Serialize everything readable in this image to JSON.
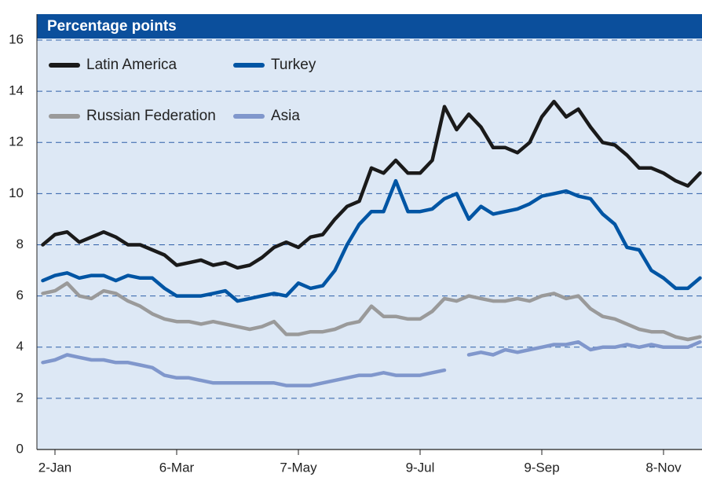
{
  "chart_data": {
    "type": "line",
    "title": "Percentage points",
    "categories": [
      null,
      "2-Jan",
      null,
      null,
      null,
      null,
      null,
      null,
      null,
      null,
      null,
      "6-Mar",
      null,
      null,
      null,
      null,
      null,
      null,
      null,
      null,
      null,
      "7-May",
      null,
      null,
      null,
      null,
      null,
      null,
      null,
      null,
      null,
      "9-Jul",
      null,
      null,
      null,
      null,
      null,
      null,
      null,
      null,
      null,
      "9-Sep",
      null,
      null,
      null,
      null,
      null,
      null,
      null,
      null,
      null,
      "8-Nov",
      null,
      null,
      null
    ],
    "ylim": [
      0,
      16
    ],
    "yticks": [
      0,
      2,
      4,
      6,
      8,
      10,
      12,
      14,
      16
    ],
    "grid": true,
    "legend": "top-left",
    "series": [
      {
        "name": "Latin America",
        "color": "#1a1a1a",
        "values": [
          8.0,
          8.4,
          8.5,
          8.1,
          8.3,
          8.5,
          8.3,
          8.0,
          8.0,
          7.8,
          7.6,
          7.2,
          7.3,
          7.4,
          7.2,
          7.3,
          7.1,
          7.2,
          7.5,
          7.9,
          8.1,
          7.9,
          8.3,
          8.4,
          9.0,
          9.5,
          9.7,
          11.0,
          10.8,
          11.3,
          10.8,
          10.8,
          11.3,
          13.4,
          12.5,
          13.1,
          12.6,
          11.8,
          11.8,
          11.6,
          12.0,
          13.0,
          13.6,
          13.0,
          13.3,
          12.6,
          12.0,
          11.9,
          11.5,
          11.0,
          11.0,
          10.8,
          10.5,
          10.3,
          10.8
        ]
      },
      {
        "name": "Turkey",
        "color": "#0055a4",
        "values": [
          6.6,
          6.8,
          6.9,
          6.7,
          6.8,
          6.8,
          6.6,
          6.8,
          6.7,
          6.7,
          6.3,
          6.0,
          6.0,
          6.0,
          6.1,
          6.2,
          5.8,
          5.9,
          6.0,
          6.1,
          6.0,
          6.5,
          6.3,
          6.4,
          7.0,
          8.0,
          8.8,
          9.3,
          9.3,
          10.5,
          9.3,
          9.3,
          9.4,
          9.8,
          10.0,
          9.0,
          9.5,
          9.2,
          9.3,
          9.4,
          9.6,
          9.9,
          10.0,
          10.1,
          9.9,
          9.8,
          9.2,
          8.8,
          7.9,
          7.8,
          7.0,
          6.7,
          6.3,
          6.3,
          6.7
        ]
      },
      {
        "name": "Russian Federation",
        "color": "#9a9a9a",
        "values": [
          6.1,
          6.2,
          6.5,
          6.0,
          5.9,
          6.2,
          6.1,
          5.8,
          5.6,
          5.3,
          5.1,
          5.0,
          5.0,
          4.9,
          5.0,
          4.9,
          4.8,
          4.7,
          4.8,
          5.0,
          4.5,
          4.5,
          4.6,
          4.6,
          4.7,
          4.9,
          5.0,
          5.6,
          5.2,
          5.2,
          5.1,
          5.1,
          5.4,
          5.9,
          5.8,
          6.0,
          5.9,
          5.8,
          5.8,
          5.9,
          5.8,
          6.0,
          6.1,
          5.9,
          6.0,
          5.5,
          5.2,
          5.1,
          4.9,
          4.7,
          4.6,
          4.6,
          4.4,
          4.3,
          4.4
        ]
      },
      {
        "name": "Asia",
        "color": "#8097cc",
        "values": [
          3.4,
          3.5,
          3.7,
          3.6,
          3.5,
          3.5,
          3.4,
          3.4,
          3.3,
          3.2,
          2.9,
          2.8,
          2.8,
          2.7,
          2.6,
          2.6,
          2.6,
          2.6,
          2.6,
          2.6,
          2.5,
          2.5,
          2.5,
          2.6,
          2.7,
          2.8,
          2.9,
          2.9,
          3.0,
          2.9,
          2.9,
          2.9,
          3.0,
          3.1,
          null,
          3.7,
          3.8,
          3.7,
          3.9,
          3.8,
          3.9,
          4.0,
          4.1,
          4.1,
          4.2,
          3.9,
          4.0,
          4.0,
          4.1,
          4.0,
          4.1,
          4.0,
          4.0,
          4.0,
          4.2
        ]
      }
    ]
  }
}
